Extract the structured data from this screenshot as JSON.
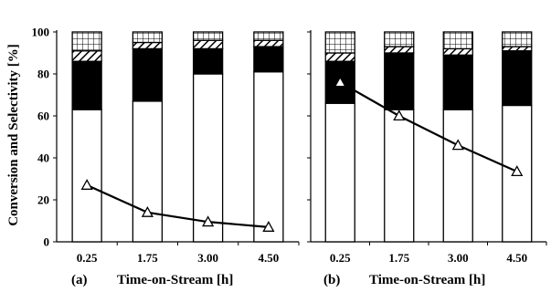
{
  "ylabel": "Conversion and Selectivity [%]",
  "colors": {
    "ink": "#000000",
    "background": "#ffffff"
  },
  "chart_data": [
    {
      "panel_label": "(a)",
      "type": "bar",
      "stacked": true,
      "xlabel": "Time-on-Stream [h]",
      "categories": [
        "0.25",
        "1.75",
        "3.00",
        "4.50"
      ],
      "ylim": [
        0,
        100
      ],
      "yticks": [
        "0",
        "20",
        "40",
        "60",
        "80",
        "100"
      ],
      "grid": false,
      "stack_segments": [
        {
          "pattern": "white",
          "values": [
            63,
            67,
            80,
            81
          ]
        },
        {
          "pattern": "black",
          "values": [
            23,
            25,
            12,
            12
          ]
        },
        {
          "pattern": "diagonal-hatch",
          "values": [
            5,
            3,
            4,
            3
          ]
        },
        {
          "pattern": "grid-hatch",
          "values": [
            9,
            5,
            4,
            4
          ]
        }
      ],
      "line": {
        "marker": "triangle",
        "values": [
          27,
          14,
          9.5,
          7
        ]
      }
    },
    {
      "panel_label": "(b)",
      "type": "bar",
      "stacked": true,
      "xlabel": "Time-on-Stream [h]",
      "categories": [
        "0.25",
        "1.75",
        "3.00",
        "4.50"
      ],
      "ylim": [
        0,
        100
      ],
      "yticks": [
        "0",
        "20",
        "40",
        "60",
        "80",
        "100"
      ],
      "grid": false,
      "stack_segments": [
        {
          "pattern": "white",
          "values": [
            66,
            63,
            63,
            65
          ]
        },
        {
          "pattern": "black",
          "values": [
            20,
            27,
            26,
            26
          ]
        },
        {
          "pattern": "diagonal-hatch",
          "values": [
            4,
            3,
            3,
            2
          ]
        },
        {
          "pattern": "grid-hatch",
          "values": [
            10,
            7,
            8,
            7
          ]
        }
      ],
      "line": {
        "marker": "triangle",
        "values": [
          76,
          60,
          46,
          33.5
        ]
      }
    }
  ]
}
